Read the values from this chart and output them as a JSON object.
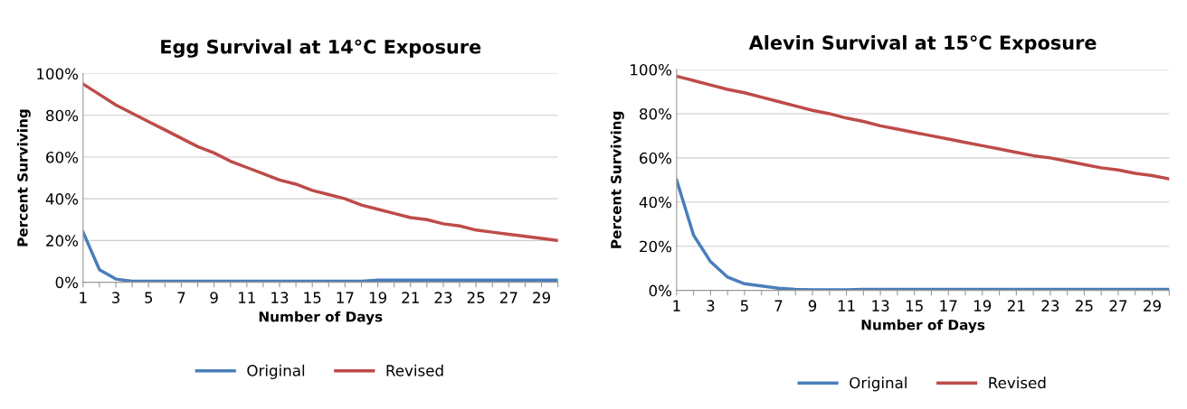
{
  "chart_data": [
    {
      "type": "line",
      "title": "Egg Survival at 14°C Exposure",
      "xlabel": "Number of Days",
      "ylabel": "Percent Surviving",
      "categories": [
        "1",
        null,
        "3",
        null,
        "5",
        null,
        "7",
        null,
        "9",
        null,
        "11",
        null,
        "13",
        null,
        "15",
        null,
        "17",
        null,
        "19",
        null,
        "21",
        null,
        "23",
        null,
        "25",
        null,
        "27",
        null,
        "29",
        null
      ],
      "series": [
        {
          "name": "Original",
          "color": "#4a7ebb",
          "values": [
            24,
            6,
            1.5,
            0.5,
            0.5,
            0.5,
            0.5,
            0.5,
            0.5,
            0.5,
            0.5,
            0.5,
            0.5,
            0.5,
            0.5,
            0.5,
            0.5,
            0.5,
            1,
            1,
            1,
            1,
            1,
            1,
            1,
            1,
            1,
            1,
            1,
            1
          ]
        },
        {
          "name": "Revised",
          "color": "#be4b48",
          "values": [
            95,
            90,
            85,
            81,
            77,
            73,
            69,
            65,
            62,
            58,
            55,
            52,
            49,
            47,
            44,
            42,
            40,
            37,
            35,
            33,
            31,
            30,
            28,
            27,
            25,
            24,
            23,
            22,
            21,
            20
          ]
        }
      ],
      "ylim": [
        0,
        100
      ],
      "yticks": [
        {
          "value": 0,
          "label": "0%"
        },
        {
          "value": 20,
          "label": "20%"
        },
        {
          "value": 40,
          "label": "40%"
        },
        {
          "value": 60,
          "label": "60%"
        },
        {
          "value": 80,
          "label": "80%"
        },
        {
          "value": 100,
          "label": "100%"
        }
      ],
      "grid": "y",
      "legend": "bottom",
      "marker": "none",
      "line_style": "solid"
    },
    {
      "type": "line",
      "title": "Alevin Survival at 15°C Exposure",
      "xlabel": "Number of Days",
      "ylabel": "Percent Surviving",
      "categories": [
        "1",
        null,
        "3",
        null,
        "5",
        null,
        "7",
        null,
        "9",
        null,
        "11",
        null,
        "13",
        null,
        "15",
        null,
        "17",
        null,
        "19",
        null,
        "21",
        null,
        "23",
        null,
        "25",
        null,
        "27",
        null,
        "29",
        null
      ],
      "series": [
        {
          "name": "Original",
          "color": "#4a7ebb",
          "values": [
            50,
            25,
            13,
            6,
            3,
            2,
            1,
            0.5,
            0.3,
            0.3,
            0.3,
            0.5,
            0.5,
            0.5,
            0.5,
            0.5,
            0.5,
            0.5,
            0.5,
            0.5,
            0.5,
            0.5,
            0.5,
            0.5,
            0.5,
            0.5,
            0.5,
            0.5,
            0.5,
            0.5
          ]
        },
        {
          "name": "Revised",
          "color": "#be4b48",
          "values": [
            97,
            95,
            93,
            91,
            89.5,
            87.5,
            85.5,
            83.5,
            81.5,
            80,
            78,
            76.5,
            74.5,
            73,
            71.5,
            70,
            68.5,
            67,
            65.5,
            64,
            62.5,
            61,
            60,
            58.5,
            57,
            55.5,
            54.5,
            53,
            52,
            50.5
          ]
        }
      ],
      "ylim": [
        0,
        100
      ],
      "yticks": [
        {
          "value": 0,
          "label": "0%"
        },
        {
          "value": 20,
          "label": "20%"
        },
        {
          "value": 40,
          "label": "40%"
        },
        {
          "value": 60,
          "label": "60%"
        },
        {
          "value": 80,
          "label": "80%"
        },
        {
          "value": 100,
          "label": "100%"
        }
      ],
      "grid": "y",
      "legend": "bottom",
      "marker": "none",
      "line_style": "solid"
    }
  ]
}
